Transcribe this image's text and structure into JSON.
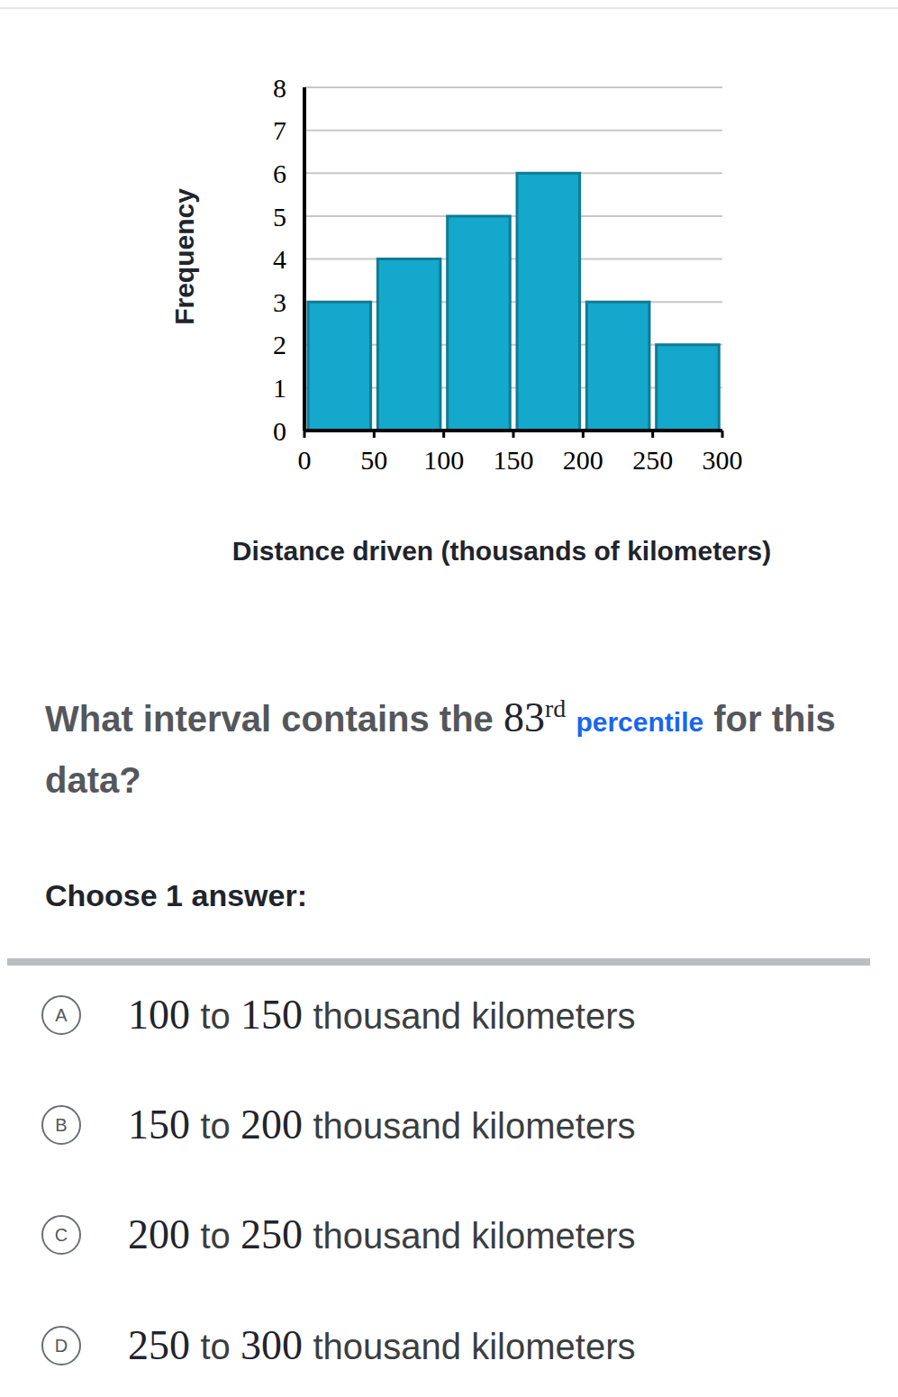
{
  "chart_data": {
    "type": "histogram",
    "bins": [
      0,
      50,
      100,
      150,
      200,
      250,
      300
    ],
    "values": [
      3,
      4,
      5,
      6,
      3,
      2
    ],
    "color": "#13a8cc",
    "xlim": [
      0,
      300
    ],
    "xticks": [
      0,
      50,
      100,
      150,
      200,
      250,
      300
    ],
    "ylim": [
      0,
      8
    ],
    "yticks": [
      0,
      1,
      2,
      3,
      4,
      5,
      6,
      7,
      8
    ],
    "x_label": "Distance driven (thousands of kilometers)",
    "y_label": "Frequency",
    "grid": true
  },
  "question": {
    "before": "What interval contains the",
    "ordinal": "83",
    "suffix": "rd",
    "link": "percentile",
    "after": "for this data?"
  },
  "instruction": "Choose 1 answer:",
  "choices": [
    {
      "letter": "A",
      "text": "100 to 150 thousand kilometers"
    },
    {
      "letter": "B",
      "text": "150 to 200 thousand kilometers"
    },
    {
      "letter": "C",
      "text": "200 to 250 thousand kilometers"
    },
    {
      "letter": "D",
      "text": "250 to 300 thousand kilometers"
    }
  ]
}
